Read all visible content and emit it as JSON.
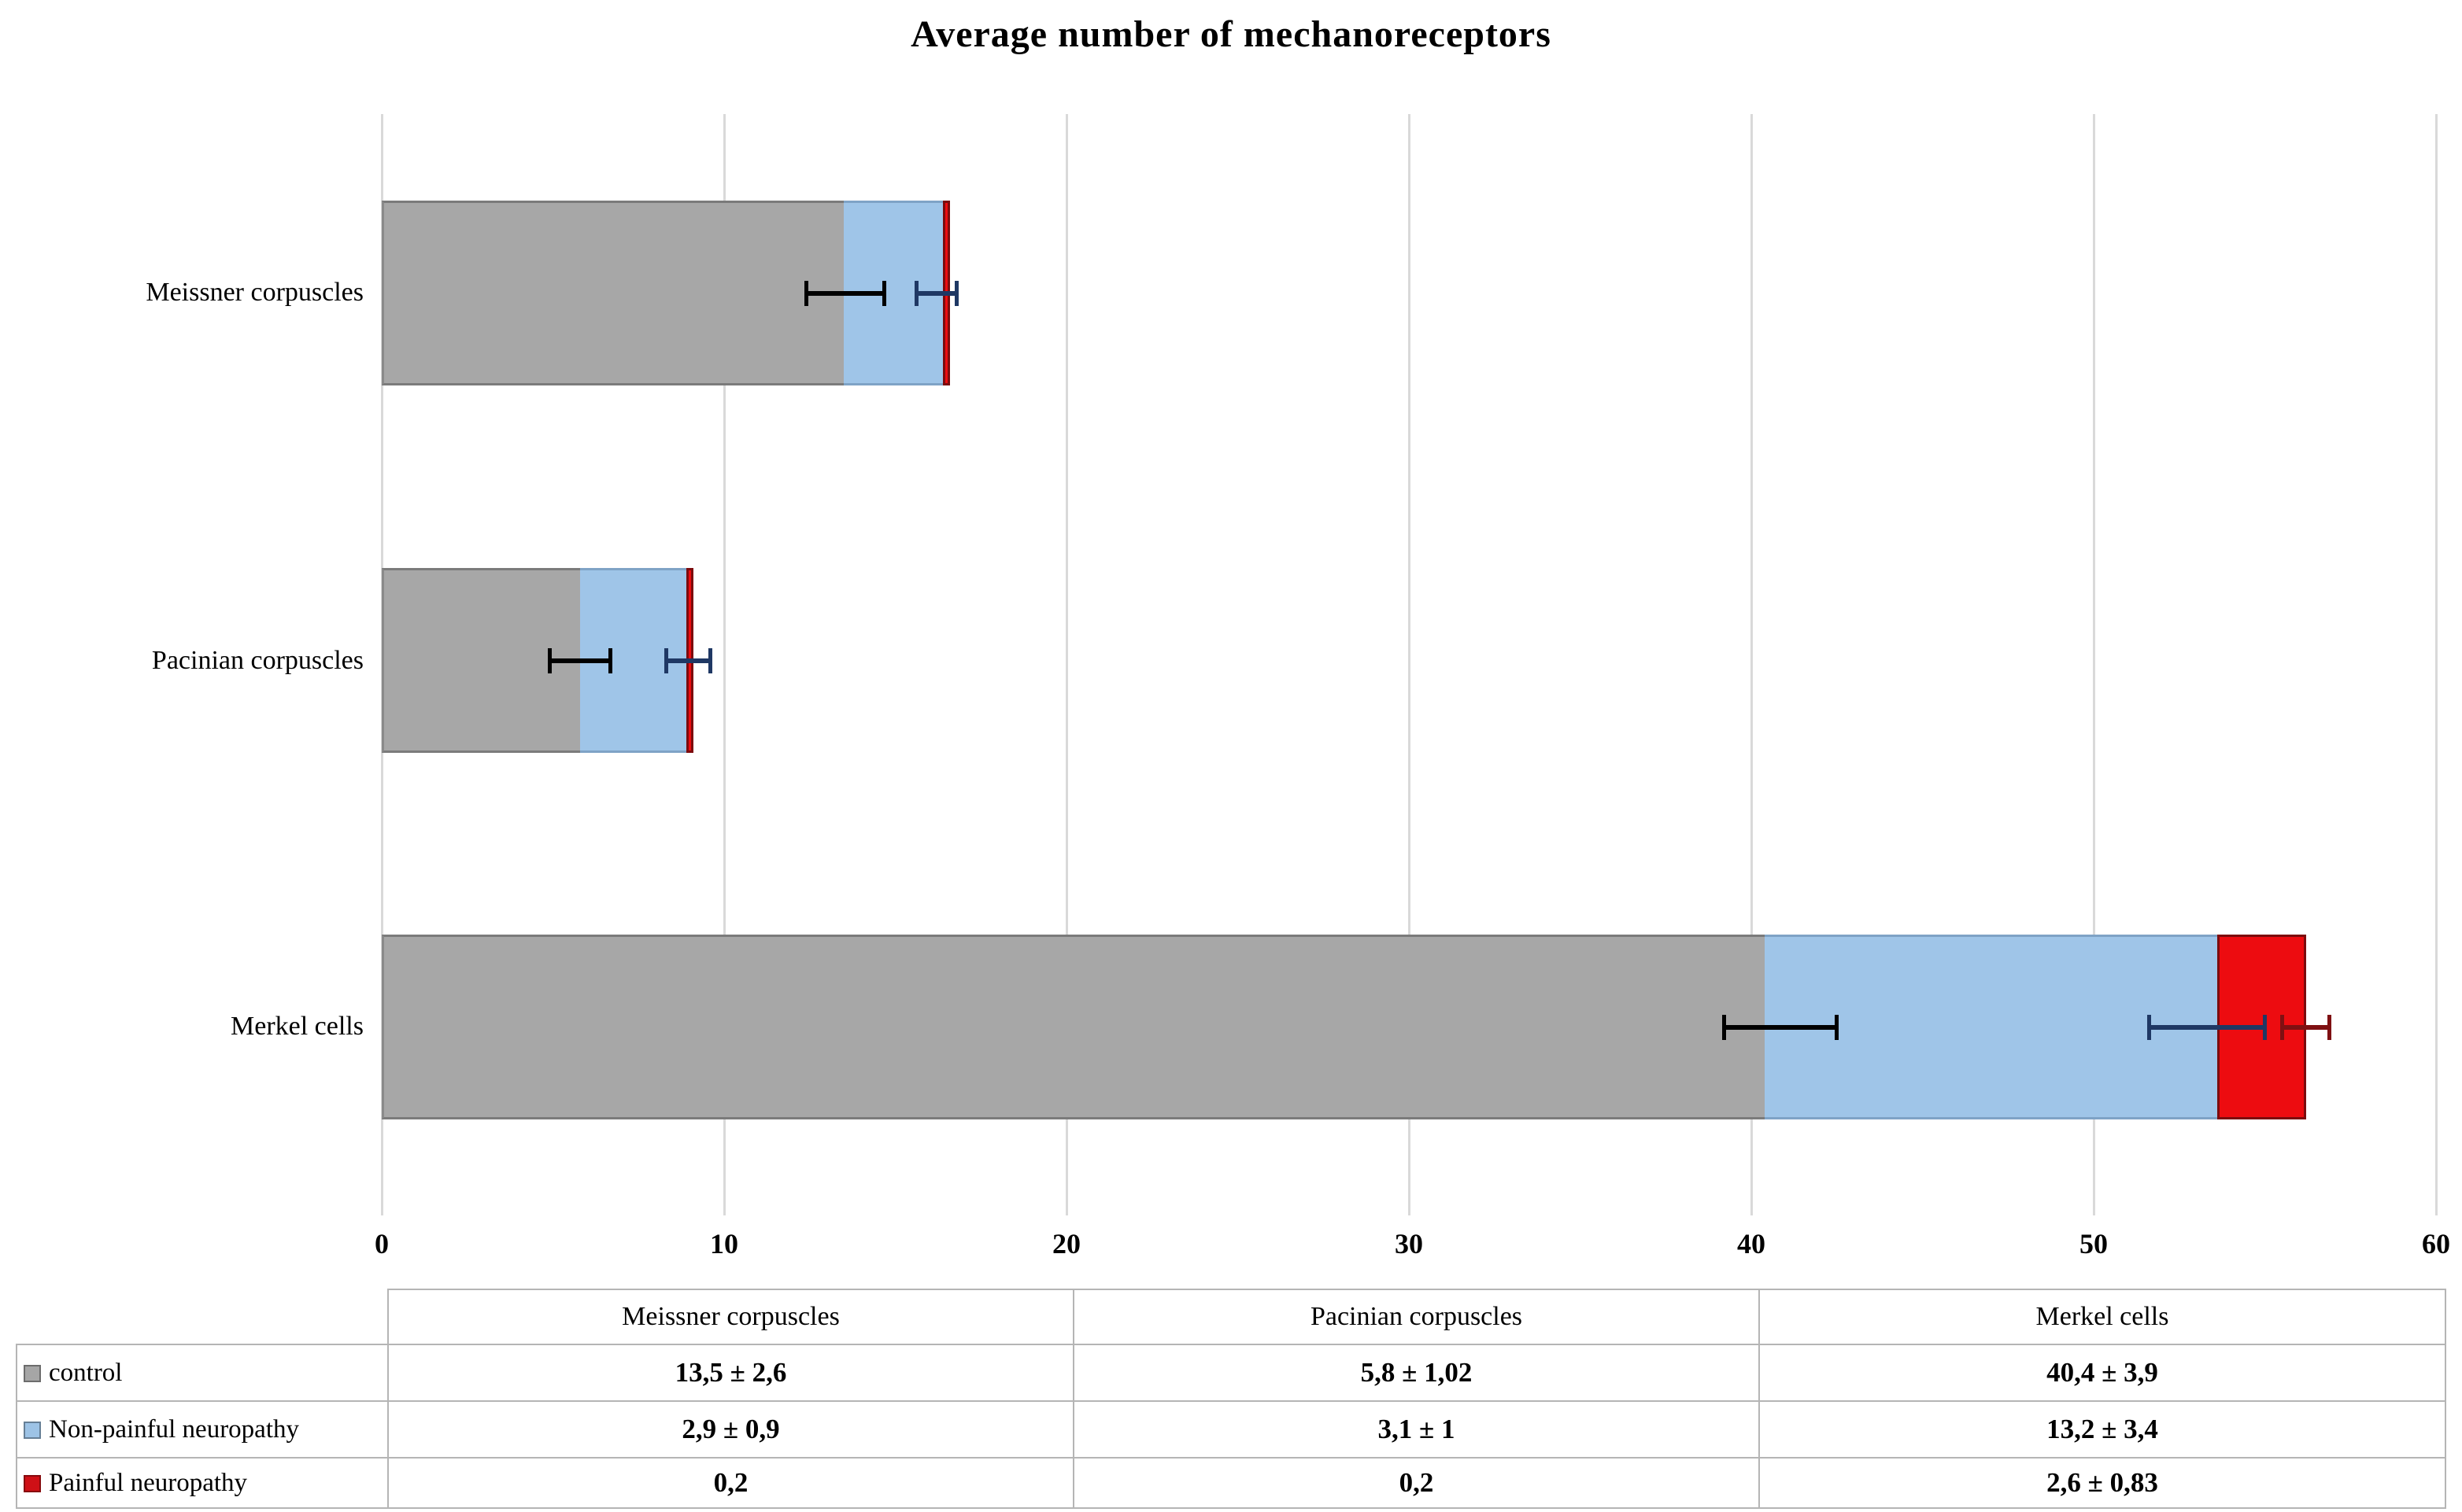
{
  "title": "Average number of mechanoreceptors",
  "chart_data": {
    "type": "bar",
    "orientation": "horizontal",
    "stacked": true,
    "title": "Average number of mechanoreceptors",
    "categories": [
      "Meissner corpuscles",
      "Pacinian corpuscles",
      "Merkel cells"
    ],
    "series": [
      {
        "name": "control",
        "color": "#a7a7a7",
        "values": [
          13.5,
          5.8,
          40.4
        ],
        "sd_labels": [
          "2,6",
          "1,02",
          "3,9"
        ]
      },
      {
        "name": "Non-painful neuropathy",
        "color": "#9fc5e8",
        "values": [
          2.9,
          3.1,
          13.2
        ],
        "sd_labels": [
          "0,9",
          "1",
          "3,4"
        ]
      },
      {
        "name": "Painful neuropathy",
        "color": "#ed0c10",
        "values": [
          0.2,
          0.2,
          2.6
        ],
        "sd_labels": [
          "",
          "",
          "0,83"
        ]
      }
    ],
    "xlim": [
      0,
      60
    ],
    "xticks": [
      0,
      10,
      20,
      30,
      40,
      50,
      60
    ],
    "xtick_labels": [
      "0",
      "10",
      "20",
      "30",
      "40",
      "50",
      "60"
    ],
    "grid": "vertical",
    "gridline_color": "#d9d9d9",
    "error_bars": [
      {
        "category_index": 0,
        "series": "control",
        "from": 12.4,
        "to": 14.7,
        "color": "#000000"
      },
      {
        "category_index": 0,
        "series": "Non-painful neuropathy",
        "from": 15.6,
        "to": 16.8,
        "color": "#1f3864"
      },
      {
        "category_index": 1,
        "series": "control",
        "from": 4.9,
        "to": 6.7,
        "color": "#000000"
      },
      {
        "category_index": 1,
        "series": "Non-painful neuropathy",
        "from": 8.3,
        "to": 9.6,
        "color": "#1f3864"
      },
      {
        "category_index": 2,
        "series": "control",
        "from": 39.2,
        "to": 42.5,
        "color": "#000000"
      },
      {
        "category_index": 2,
        "series": "Non-painful neuropathy",
        "from": 51.6,
        "to": 55.0,
        "color": "#1f3864"
      },
      {
        "category_index": 2,
        "series": "Painful neuropathy",
        "from": 55.5,
        "to": 56.9,
        "color": "#7f1012"
      }
    ]
  },
  "table": {
    "columns": [
      "",
      "Meissner corpuscles",
      "Pacinian corpuscles",
      "Merkel cells"
    ],
    "rows": [
      {
        "label": "control",
        "swatch": "#a6a6a6",
        "values": [
          "13,5 ± 2,6",
          "5,8 ± 1,02",
          "40,4 ± 3,9"
        ]
      },
      {
        "label": "Non-painful neuropathy",
        "swatch": "#9dc3e6",
        "values": [
          "2,9 ± 0,9",
          "3,1 ± 1",
          "13,2 ± 3,4"
        ]
      },
      {
        "label": "Painful neuropathy",
        "swatch": "#cf1016",
        "values": [
          "0,2",
          "0,2",
          "2,6 ± 0,83"
        ]
      }
    ]
  }
}
